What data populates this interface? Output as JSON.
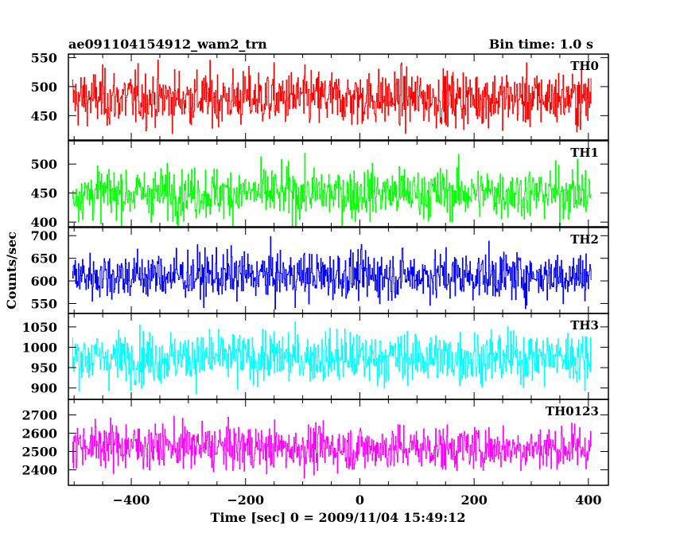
{
  "chart_data": {
    "type": "line",
    "title": "ae091104154912_wam2_trn",
    "bin_time_label": "Bin time: 1.0 s",
    "xlabel": "Time [sec] 0 = 2009/11/04 15:49:12",
    "ylabel": "Counts/sec",
    "xlim": [
      -510,
      435
    ],
    "xticks": [
      -400,
      -200,
      0,
      200,
      400
    ],
    "x_start": -503,
    "x_end": 405,
    "x_step": 1.0,
    "panels": [
      {
        "name": "TH0",
        "color": "#ff0000",
        "ylim": [
          408,
          556
        ],
        "yticks": [
          450,
          500,
          550
        ],
        "mean": 480,
        "std": 24,
        "trend": 0
      },
      {
        "name": "TH1",
        "color": "#00ff00",
        "ylim": [
          392,
          540
        ],
        "yticks": [
          400,
          450,
          500
        ],
        "mean": 450,
        "std": 22,
        "trend": 0
      },
      {
        "name": "TH2",
        "color": "#0000ff",
        "ylim": [
          528,
          718
        ],
        "yticks": [
          550,
          600,
          650,
          700
        ],
        "mean": 612,
        "std": 27,
        "trend": 0
      },
      {
        "name": "TH3",
        "color": "#00ffff",
        "ylim": [
          872,
          1083
        ],
        "yticks": [
          900,
          950,
          1000,
          1050
        ],
        "mean": 975,
        "std": 32,
        "trend": 0
      },
      {
        "name": "TH0123",
        "color": "#ff00ff",
        "ylim": [
          2315,
          2785
        ],
        "yticks": [
          2400,
          2500,
          2600,
          2700
        ],
        "mean": 2520,
        "std": 62,
        "trend": 60
      }
    ]
  }
}
